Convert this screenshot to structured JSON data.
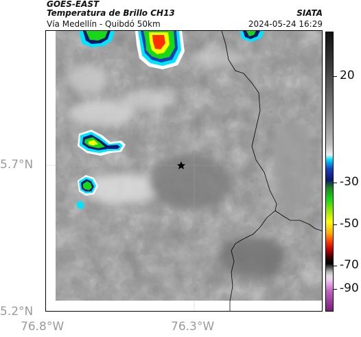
{
  "header": {
    "satellite": "GOES-EAST",
    "product": "Temperatura de Brillo CH13",
    "route": "Vía Medellín - Quibdó 50km",
    "agency": "SIATA",
    "timestamp": "2024-05-24 16:29"
  },
  "axes": {
    "lat_labels": [
      "5.7°N",
      "5.2°N"
    ],
    "lon_labels": [
      "76.8°W",
      "76.3°W"
    ]
  },
  "colorbar": {
    "tick_labels": [
      "20",
      "-30",
      "-50",
      "-70",
      "-90"
    ]
  },
  "map": {
    "marker_icon": "star-icon",
    "colors": {
      "gray_base": "#8a8a8a",
      "border_line": "#000000",
      "cold_cyan": "#00e5ff",
      "cold_blue": "#0a1670",
      "cold_green": "#17d817",
      "cold_yellow": "#ffff00",
      "cold_red": "#ff3000"
    }
  }
}
